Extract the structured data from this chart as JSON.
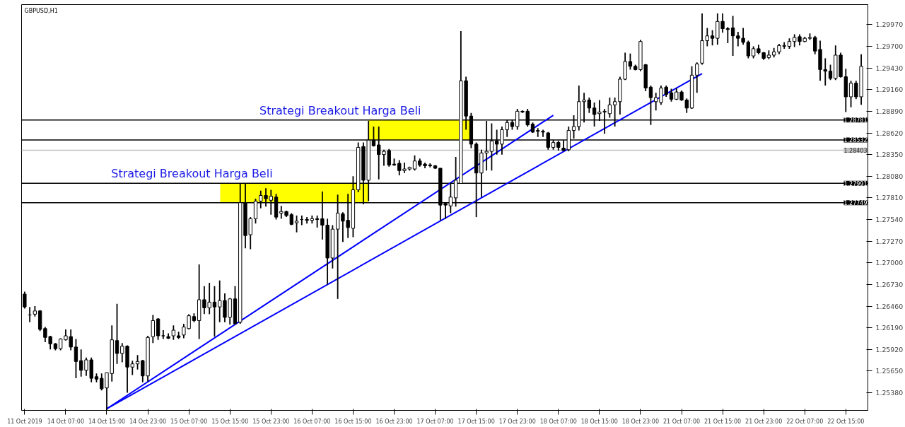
{
  "chart_data": {
    "type": "candlestick",
    "title": "GBPUSD,H1",
    "color": "#000000",
    "categories": [
      "11 Oct 2019",
      null,
      null,
      null,
      null,
      null,
      null,
      null,
      "14 Oct 07:00",
      null,
      null,
      null,
      null,
      null,
      null,
      null,
      "14 Oct 15:00",
      null,
      null,
      null,
      null,
      null,
      null,
      null,
      "14 Oct 23:00",
      null,
      null,
      null,
      null,
      null,
      null,
      null,
      "15 Oct 07:00",
      null,
      null,
      null,
      null,
      null,
      null,
      null,
      "15 Oct 15:00",
      null,
      null,
      null,
      null,
      null,
      null,
      null,
      "15 Oct 23:00",
      null,
      null,
      null,
      null,
      null,
      null,
      null,
      "16 Oct 07:00",
      null,
      null,
      null,
      null,
      null,
      null,
      null,
      "16 Oct 15:00",
      null,
      null,
      null,
      null,
      null,
      null,
      null,
      "16 Oct 23:00",
      null,
      null,
      null,
      null,
      null,
      null,
      null,
      "17 Oct 07:00",
      null,
      null,
      null,
      null,
      null,
      null,
      null,
      "17 Oct 15:00",
      null,
      null,
      null,
      null,
      null,
      null,
      null,
      "17 Oct 23:00",
      null,
      null,
      null,
      null,
      null,
      null,
      null,
      "18 Oct 07:00",
      null,
      null,
      null,
      null,
      null,
      null,
      null,
      "18 Oct 15:00",
      null,
      null,
      null,
      null,
      null,
      null,
      null,
      "18 Oct 23:00",
      null,
      null,
      null,
      null,
      null,
      null,
      null,
      "21 Oct 07:00",
      null,
      null,
      null,
      null,
      null,
      null,
      null,
      "21 Oct 15:00",
      null,
      null,
      null,
      null,
      null,
      null,
      null,
      "21 Oct 23:00",
      null,
      null,
      null,
      null,
      null,
      null,
      null,
      "22 Oct 07:00",
      null,
      null,
      null,
      null,
      null,
      null,
      null,
      "22 Oct 15:00",
      null,
      null,
      null
    ],
    "ohlc": [
      [
        1.2661,
        1.2664,
        1.2643,
        1.2645
      ],
      [
        1.2635,
        1.2645,
        1.2626,
        1.2635
      ],
      [
        1.2636,
        1.2646,
        1.2633,
        1.264
      ],
      [
        1.264,
        1.2641,
        1.2615,
        1.2617
      ],
      [
        1.2618,
        1.262,
        1.2601,
        1.2607
      ],
      [
        1.2608,
        1.2609,
        1.2592,
        1.2599
      ],
      [
        1.2599,
        1.26,
        1.2591,
        1.2593
      ],
      [
        1.2593,
        1.2606,
        1.2591,
        1.2605
      ],
      [
        1.2604,
        1.2617,
        1.2603,
        1.2609
      ],
      [
        1.2608,
        1.2617,
        1.2591,
        1.2595
      ],
      [
        1.2595,
        1.2605,
        1.2556,
        1.2577
      ],
      [
        1.2578,
        1.2592,
        1.2558,
        1.2566
      ],
      [
        1.2566,
        1.2582,
        1.2559,
        1.2579
      ],
      [
        1.2579,
        1.2582,
        1.2551,
        1.2556
      ],
      [
        1.2558,
        1.2562,
        1.2551,
        1.2555
      ],
      [
        1.2556,
        1.2562,
        1.2541,
        1.2543
      ],
      [
        1.2544,
        1.2563,
        1.2516,
        1.2563
      ],
      [
        1.2562,
        1.2622,
        1.2552,
        1.2604
      ],
      [
        1.2603,
        1.2649,
        1.2574,
        1.2587
      ],
      [
        1.2587,
        1.26,
        1.2576,
        1.2596
      ],
      [
        1.2596,
        1.2597,
        1.2538,
        1.257
      ],
      [
        1.257,
        1.2578,
        1.256,
        1.2574
      ],
      [
        1.2574,
        1.2585,
        1.2567,
        1.2577
      ],
      [
        1.2578,
        1.2579,
        1.2551,
        1.2559
      ],
      [
        1.2559,
        1.2609,
        1.2552,
        1.2607
      ],
      [
        1.2608,
        1.2635,
        1.26,
        1.2628
      ],
      [
        1.263,
        1.2631,
        1.2604,
        1.2609
      ],
      [
        1.2609,
        1.2616,
        1.2605,
        1.2609
      ],
      [
        1.2608,
        1.2612,
        1.2605,
        1.2606
      ],
      [
        1.2609,
        1.2622,
        1.2604,
        1.2616
      ],
      [
        1.2609,
        1.2614,
        1.2605,
        1.2607
      ],
      [
        1.261,
        1.2624,
        1.2606,
        1.262
      ],
      [
        1.2618,
        1.2636,
        1.2617,
        1.2634
      ],
      [
        1.2633,
        1.2637,
        1.2626,
        1.2628
      ],
      [
        1.2628,
        1.2698,
        1.2605,
        1.2654
      ],
      [
        1.2654,
        1.2671,
        1.2636,
        1.2644
      ],
      [
        1.2644,
        1.2675,
        1.2636,
        1.2651
      ],
      [
        1.2651,
        1.2671,
        1.2608,
        1.2645
      ],
      [
        1.2645,
        1.2678,
        1.2626,
        1.2653
      ],
      [
        1.2653,
        1.2662,
        1.2626,
        1.2632
      ],
      [
        1.2632,
        1.2656,
        1.2623,
        1.2655
      ],
      [
        1.2655,
        1.2671,
        1.2623,
        1.2624
      ],
      [
        1.2626,
        1.2799,
        1.2624,
        1.2775
      ],
      [
        1.2775,
        1.2799,
        1.2718,
        1.2734
      ],
      [
        1.2735,
        1.2757,
        1.2717,
        1.2755
      ],
      [
        1.2755,
        1.278,
        1.2749,
        1.2777
      ],
      [
        1.2777,
        1.279,
        1.2768,
        1.2784
      ],
      [
        1.2784,
        1.2793,
        1.277,
        1.278
      ],
      [
        1.2778,
        1.2791,
        1.276,
        1.2783
      ],
      [
        1.2782,
        1.2786,
        1.2754,
        1.2757
      ],
      [
        1.2762,
        1.2771,
        1.2755,
        1.2764
      ],
      [
        1.2764,
        1.2765,
        1.2757,
        1.2759
      ],
      [
        1.276,
        1.2762,
        1.2747,
        1.2748
      ],
      [
        1.275,
        1.2759,
        1.2738,
        1.2752
      ],
      [
        1.2754,
        1.2759,
        1.2747,
        1.2754
      ],
      [
        1.2754,
        1.2757,
        1.2749,
        1.2753
      ],
      [
        1.2753,
        1.2759,
        1.2749,
        1.2755
      ],
      [
        1.2755,
        1.2759,
        1.2744,
        1.2754
      ],
      [
        1.2755,
        1.2789,
        1.2729,
        1.2747
      ],
      [
        1.2747,
        1.2755,
        1.2673,
        1.2706
      ],
      [
        1.2706,
        1.2747,
        1.2693,
        1.2742
      ],
      [
        1.2742,
        1.2785,
        1.2655,
        1.2762
      ],
      [
        1.2761,
        1.2763,
        1.2726,
        1.2752
      ],
      [
        1.2753,
        1.2786,
        1.2731,
        1.2744
      ],
      [
        1.2743,
        1.2808,
        1.2732,
        1.2791
      ],
      [
        1.2791,
        1.285,
        1.2788,
        1.2844
      ],
      [
        1.2845,
        1.285,
        1.2773,
        1.2803
      ],
      [
        1.2803,
        1.2877,
        1.2777,
        1.2853
      ],
      [
        1.2853,
        1.287,
        1.2845,
        1.2846
      ],
      [
        1.2847,
        1.287,
        1.2804,
        1.2835
      ],
      [
        1.2835,
        1.2841,
        1.2821,
        1.2839
      ],
      [
        1.284,
        1.2842,
        1.282,
        1.2822
      ],
      [
        1.2823,
        1.283,
        1.2821,
        1.2822
      ],
      [
        1.2824,
        1.2828,
        1.2809,
        1.2815
      ],
      [
        1.2815,
        1.2825,
        1.2812,
        1.2817
      ],
      [
        1.2817,
        1.282,
        1.2815,
        1.2819
      ],
      [
        1.2817,
        1.2834,
        1.2815,
        1.2827
      ],
      [
        1.2827,
        1.283,
        1.282,
        1.2822
      ],
      [
        1.2823,
        1.2825,
        1.2818,
        1.2821
      ],
      [
        1.2822,
        1.2824,
        1.2819,
        1.2821
      ],
      [
        1.2821,
        1.2822,
        1.2817,
        1.2818
      ],
      [
        1.2818,
        1.2818,
        1.2753,
        1.2772
      ],
      [
        1.2774,
        1.2775,
        1.2755,
        1.2772
      ],
      [
        1.2771,
        1.28,
        1.2762,
        1.2782
      ],
      [
        1.2781,
        1.2832,
        1.277,
        1.2803
      ],
      [
        1.2799,
        1.2989,
        1.2799,
        1.2927
      ],
      [
        1.2927,
        1.2932,
        1.2866,
        1.2883
      ],
      [
        1.2883,
        1.2887,
        1.2843,
        1.2848
      ],
      [
        1.2848,
        1.285,
        1.2757,
        1.2812
      ],
      [
        1.2812,
        1.2841,
        1.2782,
        1.2837
      ],
      [
        1.2837,
        1.2877,
        1.2815,
        1.2839
      ],
      [
        1.2839,
        1.2874,
        1.2815,
        1.2852
      ],
      [
        1.2852,
        1.2866,
        1.2835,
        1.2848
      ],
      [
        1.2848,
        1.287,
        1.2835,
        1.2866
      ],
      [
        1.2866,
        1.2878,
        1.2857,
        1.2875
      ],
      [
        1.2875,
        1.2878,
        1.2866,
        1.287
      ],
      [
        1.287,
        1.2892,
        1.2866,
        1.2889
      ],
      [
        1.2889,
        1.289,
        1.2887,
        1.2888
      ],
      [
        1.2889,
        1.2892,
        1.287,
        1.2872
      ],
      [
        1.2873,
        1.2875,
        1.2862,
        1.2863
      ],
      [
        1.2865,
        1.2868,
        1.2857,
        1.2864
      ],
      [
        1.2864,
        1.2866,
        1.2857,
        1.2863
      ],
      [
        1.2862,
        1.2863,
        1.2841,
        1.2844
      ],
      [
        1.2844,
        1.2853,
        1.2841,
        1.285
      ],
      [
        1.285,
        1.2852,
        1.284,
        1.2844
      ],
      [
        1.2843,
        1.2853,
        1.2839,
        1.284
      ],
      [
        1.2841,
        1.287,
        1.2839,
        1.2865
      ],
      [
        1.2865,
        1.2884,
        1.2855,
        1.287
      ],
      [
        1.287,
        1.2921,
        1.2865,
        1.2901
      ],
      [
        1.2901,
        1.2912,
        1.2875,
        1.2903
      ],
      [
        1.2903,
        1.2906,
        1.2887,
        1.2893
      ],
      [
        1.2893,
        1.29,
        1.287,
        1.2885
      ],
      [
        1.2886,
        1.2903,
        1.2877,
        1.2888
      ],
      [
        1.2888,
        1.2892,
        1.2861,
        1.2889
      ],
      [
        1.2886,
        1.2906,
        1.2881,
        1.2897
      ],
      [
        1.2897,
        1.2906,
        1.287,
        1.2901
      ],
      [
        1.2901,
        1.2932,
        1.2885,
        1.2929
      ],
      [
        1.2929,
        1.2962,
        1.2928,
        1.2951
      ],
      [
        1.2951,
        1.2961,
        1.2941,
        1.2945
      ],
      [
        1.2945,
        1.2947,
        1.294,
        1.2941
      ],
      [
        1.2941,
        1.2978,
        1.2939,
        1.2976
      ],
      [
        1.2947,
        1.2948,
        1.2914,
        1.2918
      ],
      [
        1.2919,
        1.2921,
        1.2872,
        1.2906
      ],
      [
        1.2901,
        1.2912,
        1.289,
        1.2906
      ],
      [
        1.29,
        1.2921,
        1.2897,
        1.2918
      ],
      [
        1.2919,
        1.2921,
        1.2907,
        1.291
      ],
      [
        1.2912,
        1.2917,
        1.2901,
        1.2904
      ],
      [
        1.2904,
        1.2918,
        1.2903,
        1.2913
      ],
      [
        1.2913,
        1.2915,
        1.2902,
        1.2903
      ],
      [
        1.2903,
        1.2905,
        1.2887,
        1.2893
      ],
      [
        1.2893,
        1.2945,
        1.2892,
        1.2934
      ],
      [
        1.2934,
        1.295,
        1.2912,
        1.2948
      ],
      [
        1.2949,
        1.3011,
        1.2947,
        1.2977
      ],
      [
        1.2977,
        1.2993,
        1.297,
        1.2983
      ],
      [
        1.2983,
        1.299,
        1.2971,
        1.298
      ],
      [
        1.298,
        1.3011,
        1.2972,
        1.3001
      ],
      [
        1.3001,
        1.3011,
        1.2987,
        1.2992
      ],
      [
        1.2992,
        1.2994,
        1.2974,
        1.2991
      ],
      [
        1.2993,
        1.3008,
        1.2958,
        1.2983
      ],
      [
        1.2983,
        1.2988,
        1.297,
        1.298
      ],
      [
        1.298,
        1.2993,
        1.2972,
        1.2975
      ],
      [
        1.2975,
        1.2977,
        1.2955,
        1.2958
      ],
      [
        1.2958,
        1.297,
        1.2955,
        1.2967
      ],
      [
        1.2967,
        1.2972,
        1.296,
        1.2962
      ],
      [
        1.2962,
        1.2963,
        1.2953,
        1.2955
      ],
      [
        1.2956,
        1.2965,
        1.2954,
        1.2959
      ],
      [
        1.2959,
        1.2968,
        1.2956,
        1.2963
      ],
      [
        1.2963,
        1.2973,
        1.296,
        1.2971
      ],
      [
        1.297,
        1.2975,
        1.2967,
        1.2971
      ],
      [
        1.297,
        1.298,
        1.2967,
        1.2976
      ],
      [
        1.2976,
        1.2985,
        1.2969,
        1.2981
      ],
      [
        1.2982,
        1.2985,
        1.2971,
        1.2976
      ],
      [
        1.2976,
        1.2982,
        1.2975,
        1.298
      ],
      [
        1.298,
        1.2986,
        1.2978,
        1.2981
      ],
      [
        1.2981,
        1.2983,
        1.296,
        1.2964
      ],
      [
        1.2966,
        1.2977,
        1.2927,
        1.2941
      ],
      [
        1.2941,
        1.2955,
        1.2921,
        1.2939
      ],
      [
        1.2939,
        1.2947,
        1.2928,
        1.293
      ],
      [
        1.293,
        1.2971,
        1.2928,
        1.2959
      ],
      [
        1.2959,
        1.2962,
        1.2931,
        1.2932
      ],
      [
        1.2932,
        1.2942,
        1.2888,
        1.2907
      ],
      [
        1.2907,
        1.2927,
        1.2894,
        1.2924
      ],
      [
        1.2924,
        1.2927,
        1.2904,
        1.2907
      ],
      [
        1.2907,
        1.296,
        1.2897,
        1.2945
      ]
    ],
    "series": [
      {
        "type": "line",
        "color": "#0000ff",
        "values": [
          null,
          null,
          null,
          null,
          null,
          null,
          null,
          null,
          null,
          null,
          null,
          null,
          null,
          null,
          null,
          null,
          1.2518,
          null,
          null,
          null,
          null,
          null,
          null,
          null,
          null,
          null,
          null,
          null,
          null,
          null,
          null,
          null,
          null,
          null,
          null,
          null,
          null,
          null,
          null,
          null,
          null,
          null,
          null,
          null,
          null,
          null,
          null,
          null,
          null,
          null,
          null,
          null,
          null,
          null,
          null,
          null,
          null,
          null,
          null,
          null,
          null,
          null,
          null,
          null,
          null,
          null,
          null,
          null,
          null,
          null,
          null,
          null,
          null,
          null,
          null,
          null,
          null,
          null,
          null,
          null,
          null,
          null,
          null,
          null,
          null,
          null,
          null,
          null,
          null,
          null,
          null,
          null,
          null,
          null,
          null,
          null,
          null,
          null,
          null,
          null,
          null,
          null,
          null,
          1.2884,
          null,
          null,
          null,
          null,
          null,
          null,
          null,
          null,
          null,
          null,
          null,
          null,
          null,
          null,
          null,
          null,
          null,
          null,
          null,
          null,
          null,
          null,
          null,
          null,
          null,
          null,
          null,
          null,
          null,
          null,
          null,
          null,
          null,
          null,
          null,
          null,
          null,
          null,
          null,
          null,
          null,
          null,
          null,
          null,
          null,
          null,
          null,
          null,
          null,
          null,
          null,
          null,
          null,
          null,
          null,
          null,
          null,
          null,
          null,
          null
        ]
      },
      {
        "type": "line",
        "color": "#0000ff",
        "values": [
          null,
          null,
          null,
          null,
          null,
          null,
          null,
          null,
          null,
          null,
          null,
          null,
          null,
          null,
          null,
          null,
          1.2518,
          null,
          null,
          null,
          null,
          null,
          null,
          null,
          null,
          null,
          null,
          null,
          null,
          null,
          null,
          null,
          null,
          null,
          null,
          null,
          null,
          null,
          null,
          null,
          null,
          null,
          null,
          null,
          null,
          null,
          null,
          null,
          null,
          null,
          null,
          null,
          null,
          null,
          null,
          null,
          null,
          null,
          null,
          null,
          null,
          null,
          null,
          null,
          null,
          null,
          null,
          null,
          null,
          null,
          null,
          null,
          null,
          null,
          null,
          null,
          null,
          null,
          null,
          null,
          null,
          null,
          null,
          null,
          null,
          null,
          null,
          null,
          null,
          null,
          null,
          null,
          null,
          null,
          null,
          null,
          null,
          null,
          null,
          null,
          null,
          null,
          null,
          null,
          null,
          null,
          null,
          null,
          null,
          null,
          null,
          null,
          null,
          null,
          null,
          null,
          null,
          null,
          null,
          null,
          null,
          null,
          null,
          null,
          null,
          null,
          null,
          null,
          null,
          null,
          null,
          null,
          1.2936,
          null,
          null,
          null,
          null,
          null,
          null,
          null,
          null,
          null,
          null,
          null,
          null,
          null,
          null,
          null,
          null,
          null,
          null,
          null,
          null,
          null,
          null,
          null,
          null,
          null,
          null,
          null,
          null,
          null,
          null,
          null
        ]
      }
    ],
    "ylim": [
      1.2516,
      1.3022
    ],
    "yticks": [
      {
        "value": 1.2538,
        "label": "1.25380"
      },
      {
        "value": 1.2565,
        "label": "1.25650"
      },
      {
        "value": 1.2592,
        "label": "1.25920"
      },
      {
        "value": 1.2619,
        "label": "1.26190"
      },
      {
        "value": 1.2646,
        "label": "1.26460"
      },
      {
        "value": 1.2673,
        "label": "1.26730"
      },
      {
        "value": 1.27,
        "label": "1.27000"
      },
      {
        "value": 1.2727,
        "label": "1.27270"
      },
      {
        "value": 1.2754,
        "label": "1.27540"
      },
      {
        "value": 1.2781,
        "label": "1.27810"
      },
      {
        "value": 1.2808,
        "label": "1.28080"
      },
      {
        "value": 1.2835,
        "label": "1.28350"
      },
      {
        "value": 1.2862,
        "label": "1.28620"
      },
      {
        "value": 1.2889,
        "label": "1.28890"
      },
      {
        "value": 1.2916,
        "label": "1.29160"
      },
      {
        "value": 1.2943,
        "label": "1.29430"
      },
      {
        "value": 1.297,
        "label": "1.29700"
      },
      {
        "value": 1.2997,
        "label": "1.29970"
      }
    ],
    "ref_lines": [
      {
        "axis": "y",
        "value": 1.28781,
        "label": "1.28781",
        "color": "#000000"
      },
      {
        "axis": "y",
        "value": 1.28532,
        "label": "1.28532",
        "color": "#000000"
      },
      {
        "axis": "y",
        "value": 1.28403,
        "label": "1.28403",
        "color": "#c0c0c0"
      },
      {
        "axis": "y",
        "value": 1.27991,
        "label": "1.27991",
        "color": "#000000"
      },
      {
        "axis": "y",
        "value": 1.27749,
        "label": "1.27749",
        "color": "#000000"
      }
    ],
    "bands": [
      {
        "axis": "y",
        "from": 1.27749,
        "to": 1.27991,
        "color": "#ffff00",
        "label": "Strategi Breakout Harga Beli"
      },
      {
        "axis": "y",
        "from": 1.28532,
        "to": 1.28781,
        "color": "#ffff00",
        "label": "Strategi Breakout Harga Beli"
      }
    ]
  }
}
